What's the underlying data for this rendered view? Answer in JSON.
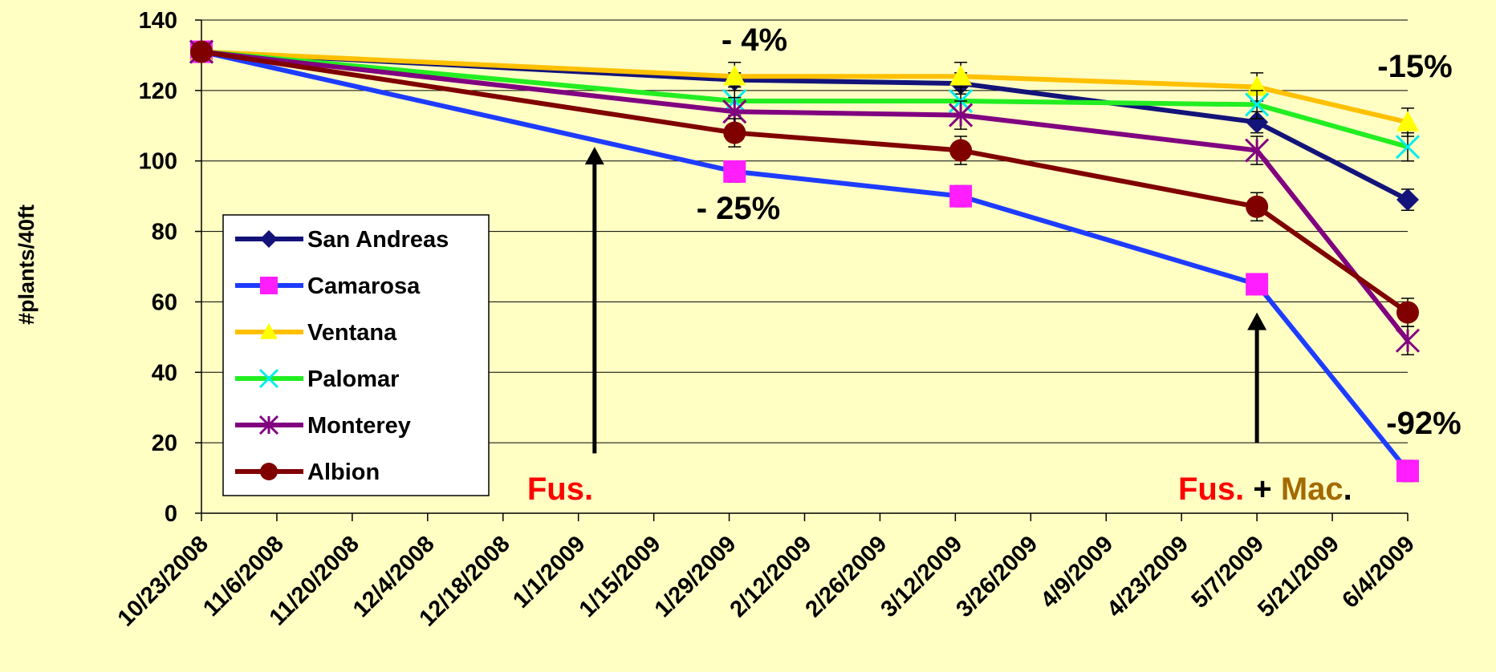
{
  "chart_data": {
    "type": "line",
    "title": "",
    "xlabel": "",
    "ylabel": "#plants/40ft",
    "x_is_date": true,
    "xlim": [
      "2008-10-23",
      "2009-06-04"
    ],
    "ylim": [
      0,
      140
    ],
    "y_ticks": [
      0,
      20,
      40,
      60,
      80,
      100,
      120,
      140
    ],
    "x_ticks": [
      {
        "date": "2008-10-23",
        "label": "10/23/2008"
      },
      {
        "date": "2008-11-06",
        "label": "11/6/2008"
      },
      {
        "date": "2008-11-20",
        "label": "11/20/2008"
      },
      {
        "date": "2008-12-04",
        "label": "12/4/2008"
      },
      {
        "date": "2008-12-18",
        "label": "12/18/2008"
      },
      {
        "date": "2009-01-01",
        "label": "1/1/2009"
      },
      {
        "date": "2009-01-15",
        "label": "1/15/2009"
      },
      {
        "date": "2009-01-29",
        "label": "1/29/2009"
      },
      {
        "date": "2009-02-12",
        "label": "2/12/2009"
      },
      {
        "date": "2009-02-26",
        "label": "2/26/2009"
      },
      {
        "date": "2009-03-12",
        "label": "3/12/2009"
      },
      {
        "date": "2009-03-26",
        "label": "3/26/2009"
      },
      {
        "date": "2009-04-09",
        "label": "4/9/2009"
      },
      {
        "date": "2009-04-23",
        "label": "4/23/2009"
      },
      {
        "date": "2009-05-07",
        "label": "5/7/2009"
      },
      {
        "date": "2009-05-21",
        "label": "5/21/2009"
      },
      {
        "date": "2009-06-04",
        "label": "6/4/2009"
      }
    ],
    "grid": "horizontal",
    "legend_position": "left-center",
    "x": [
      "2008-10-23",
      "2009-01-30",
      "2009-03-13",
      "2009-05-07",
      "2009-06-04"
    ],
    "series": [
      {
        "name": "San Andreas",
        "color": "#13137a",
        "marker": "diamond",
        "values": [
          131,
          123,
          122,
          111,
          89
        ],
        "errors": [
          0,
          2,
          3,
          3,
          3
        ]
      },
      {
        "name": "Camarosa",
        "color": "#1e3cff",
        "marker": "square",
        "marker_color": "#ff1eff",
        "values": [
          131,
          97,
          90,
          65,
          12
        ],
        "errors": [
          0,
          3,
          3,
          3,
          3
        ]
      },
      {
        "name": "Ventana",
        "color": "#ffc000",
        "marker": "triangle",
        "marker_color": "#ffff00",
        "values": [
          131,
          124,
          124,
          121,
          111
        ],
        "errors": [
          0,
          4,
          4,
          4,
          4
        ]
      },
      {
        "name": "Palomar",
        "color": "#22ee22",
        "marker": "x",
        "marker_color": "#00eeee",
        "values": [
          131,
          117,
          117,
          116,
          104
        ],
        "errors": [
          0,
          4,
          4,
          4,
          4
        ]
      },
      {
        "name": "Monterey",
        "color": "#800080",
        "marker": "star",
        "values": [
          131,
          114,
          113,
          103,
          49
        ],
        "errors": [
          0,
          4,
          4,
          4,
          4
        ]
      },
      {
        "name": "Albion",
        "color": "#800000",
        "marker": "circle",
        "values": [
          131,
          108,
          103,
          87,
          57
        ],
        "errors": [
          0,
          4,
          4,
          4,
          4
        ]
      }
    ],
    "annotations": [
      {
        "id": "pct-ventana-jan",
        "text": "- 4%",
        "color": "#000000"
      },
      {
        "id": "pct-camarosa-jan",
        "text": "- 25%",
        "color": "#000000"
      },
      {
        "id": "pct-ventana-jun",
        "text": "-15%",
        "color": "#000000"
      },
      {
        "id": "pct-camarosa-jun",
        "text": "-92%",
        "color": "#000000"
      }
    ],
    "arrows": [
      {
        "x": "2009-01-04",
        "from_y": 17,
        "to_y": 104
      },
      {
        "x": "2009-05-07",
        "from_y": 20,
        "to_y": 57
      }
    ],
    "event_labels": {
      "fus_1": "Fus.",
      "fus_2": "Fus.",
      "plus": " + ",
      "mac": "Mac",
      "period": ".",
      "fus_color": "#ff0000",
      "mac_color": "#a36a00"
    }
  }
}
